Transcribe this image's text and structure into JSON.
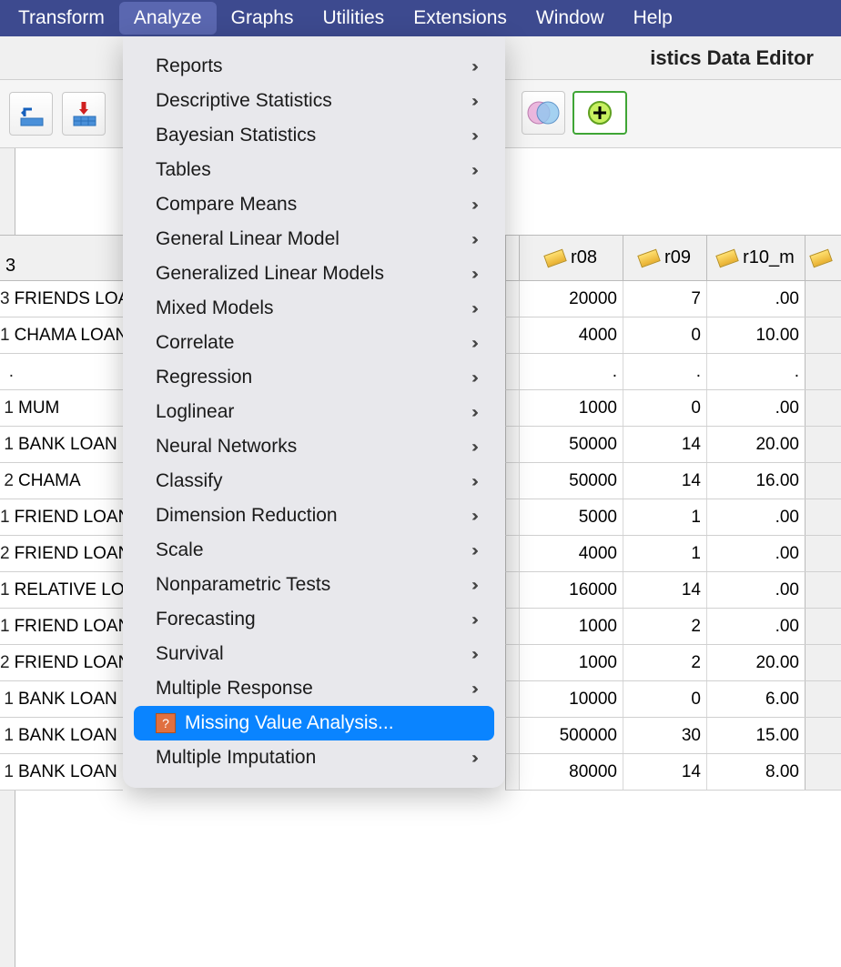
{
  "menubar": {
    "items": [
      "Transform",
      "Analyze",
      "Graphs",
      "Utilities",
      "Extensions",
      "Window",
      "Help"
    ],
    "active_index": 1,
    "bg_color": "#3d4a8f",
    "active_bg": "#5a67b0",
    "text_color": "#ffffff"
  },
  "titlebar": {
    "title_visible_fragment": "istics Data Editor"
  },
  "dropdown": {
    "bg_color": "#e8e8ec",
    "highlight_color": "#0a84ff",
    "items": [
      {
        "label": "Reports",
        "submenu": true
      },
      {
        "label": "Descriptive Statistics",
        "submenu": true
      },
      {
        "label": "Bayesian Statistics",
        "submenu": true
      },
      {
        "label": "Tables",
        "submenu": true
      },
      {
        "label": "Compare Means",
        "submenu": true
      },
      {
        "label": "General Linear Model",
        "submenu": true
      },
      {
        "label": "Generalized Linear Models",
        "submenu": true
      },
      {
        "label": "Mixed Models",
        "submenu": true
      },
      {
        "label": "Correlate",
        "submenu": true
      },
      {
        "label": "Regression",
        "submenu": true
      },
      {
        "label": "Loglinear",
        "submenu": true
      },
      {
        "label": "Neural Networks",
        "submenu": true
      },
      {
        "label": "Classify",
        "submenu": true
      },
      {
        "label": "Dimension Reduction",
        "submenu": true
      },
      {
        "label": "Scale",
        "submenu": true
      },
      {
        "label": "Nonparametric Tests",
        "submenu": true
      },
      {
        "label": "Forecasting",
        "submenu": true
      },
      {
        "label": "Survival",
        "submenu": true
      },
      {
        "label": "Multiple Response",
        "submenu": true
      },
      {
        "label": "Missing Value Analysis...",
        "submenu": false,
        "selected": true,
        "icon": true
      },
      {
        "label": "Multiple Imputation",
        "submenu": true
      }
    ]
  },
  "left_column": {
    "header_fragment": "3",
    "rows": [
      {
        "n": "3",
        "txt": "FRIENDS LOA"
      },
      {
        "n": "1",
        "txt": "CHAMA LOAN"
      },
      {
        "n": ".",
        "txt": ""
      },
      {
        "n": "1",
        "txt": "MUM"
      },
      {
        "n": "1",
        "txt": "BANK LOAN"
      },
      {
        "n": "2",
        "txt": "CHAMA"
      },
      {
        "n": "1",
        "txt": "FRIEND LOAN"
      },
      {
        "n": "2",
        "txt": "FRIEND LOAN"
      },
      {
        "n": "1",
        "txt": "RELATIVE LO"
      },
      {
        "n": "1",
        "txt": "FRIEND LOAN"
      },
      {
        "n": "2",
        "txt": "FRIEND LOAN"
      },
      {
        "n": "1",
        "txt": "BANK LOAN"
      },
      {
        "n": "1",
        "txt": "BANK LOAN"
      },
      {
        "n": "1",
        "txt": "BANK LOAN"
      }
    ]
  },
  "right_table": {
    "columns": [
      "r08",
      "r09",
      "r10_m"
    ],
    "rows": [
      [
        "20000",
        "7",
        ".00"
      ],
      [
        "4000",
        "0",
        "10.00"
      ],
      [
        ".",
        ".",
        "."
      ],
      [
        "1000",
        "0",
        ".00"
      ],
      [
        "50000",
        "14",
        "20.00"
      ],
      [
        "50000",
        "14",
        "16.00"
      ],
      [
        "5000",
        "1",
        ".00"
      ],
      [
        "4000",
        "1",
        ".00"
      ],
      [
        "16000",
        "14",
        ".00"
      ],
      [
        "1000",
        "2",
        ".00"
      ],
      [
        "1000",
        "2",
        "20.00"
      ],
      [
        "10000",
        "0",
        "6.00"
      ],
      [
        "500000",
        "30",
        "15.00"
      ],
      [
        "80000",
        "14",
        "8.00"
      ]
    ]
  }
}
